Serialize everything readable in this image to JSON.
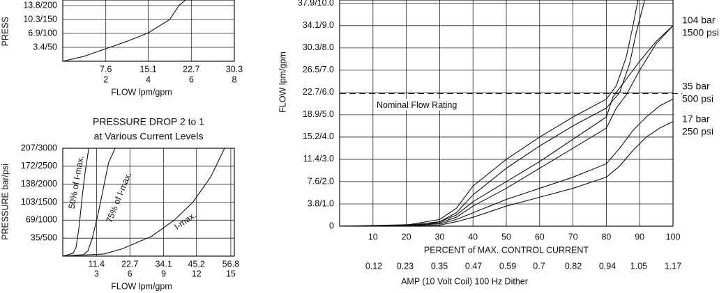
{
  "chart_data": [
    {
      "type": "line",
      "ylabel": "PRESS",
      "xlabel": "FLOW lpm/gpm",
      "xlim": [
        0,
        30.3
      ],
      "ylim": [
        0,
        220
      ],
      "xticks": [
        7.6,
        15.1,
        22.7,
        30.3
      ],
      "xticks2": [
        2,
        4,
        6,
        8
      ],
      "yticks": [
        {
          "value": 50,
          "label": "3.4/50"
        },
        {
          "value": 100,
          "label": "6.9/100"
        },
        {
          "value": 150,
          "label": "10.3/150"
        },
        {
          "value": 200,
          "label": "13.8/200"
        }
      ],
      "grid": true,
      "series": [
        {
          "color": "#111111",
          "x": [
            0,
            3.8,
            7.6,
            11.4,
            15.1,
            18.9,
            20.5,
            21.7
          ],
          "values": [
            0,
            18,
            45,
            72,
            102,
            150,
            200,
            220
          ]
        }
      ]
    },
    {
      "type": "line",
      "title": "PRESSURE DROP 2 to 1",
      "subtitle": "at Various Current Levels",
      "ylabel": "PRESSURE bar/psi",
      "xlabel": "FLOW lpm/gpm",
      "xlim": [
        0,
        58
      ],
      "ylim": [
        0,
        3000
      ],
      "xticks": [
        11.4,
        22.7,
        34.1,
        45.2,
        56.8
      ],
      "xticks2": [
        3,
        6,
        9,
        12,
        15
      ],
      "yticks": [
        {
          "value": 500,
          "label": "35/500"
        },
        {
          "value": 1000,
          "label": "69/1000"
        },
        {
          "value": 1500,
          "label": "103/1500"
        },
        {
          "value": 2000,
          "label": "138/2000"
        },
        {
          "value": 2500,
          "label": "172/2500"
        },
        {
          "value": 3000,
          "label": "207/3000"
        }
      ],
      "grid": true,
      "annotations": [
        "50% of I-max.",
        "75% of I-max.",
        "I-max."
      ],
      "series": [
        {
          "color": "#111111",
          "x": [
            0,
            3.5,
            4.5,
            5.5,
            6.5,
            7.5,
            8.8
          ],
          "values": [
            0,
            80,
            250,
            800,
            1600,
            2300,
            3000
          ]
        },
        {
          "color": "#111111",
          "x": [
            0,
            7,
            8.5,
            10,
            12,
            14,
            15.5,
            17.7
          ],
          "values": [
            0,
            40,
            150,
            500,
            1200,
            2000,
            2600,
            3000
          ]
        },
        {
          "color": "#111111",
          "x": [
            0,
            14,
            20,
            30,
            37.7,
            44,
            50,
            54.7
          ],
          "values": [
            0,
            60,
            200,
            550,
            1000,
            1500,
            2200,
            3000
          ]
        }
      ]
    },
    {
      "type": "line",
      "ylabel": "FLOW lpm/gpm",
      "xlabel": "PERCENT of MAX. CONTROL CURRENT",
      "x2label": "AMP (10 Volt Coil) 100 Hz Dither",
      "xlim": [
        0,
        100
      ],
      "ylim": [
        0,
        10.15
      ],
      "x2lim": [
        0,
        1.17
      ],
      "xticks": [
        10,
        20,
        30,
        40,
        50,
        60,
        70,
        80,
        90,
        100
      ],
      "x2ticks": [
        0.12,
        0.23,
        0.35,
        0.47,
        0.59,
        0.7,
        0.82,
        0.94,
        1.05,
        1.17
      ],
      "yticks": [
        0,
        {
          "value": 1.0,
          "label": "3.8/1.0"
        },
        {
          "value": 2.0,
          "label": "7.6/2.0"
        },
        {
          "value": 3.0,
          "label": "11.4/3.0"
        },
        {
          "value": 4.0,
          "label": "15.2/4.0"
        },
        {
          "value": 5.0,
          "label": "18.9/5.0"
        },
        {
          "value": 6.0,
          "label": "22.7/6.0"
        },
        {
          "value": 7.0,
          "label": "26.5/7.0"
        },
        {
          "value": 8.0,
          "label": "30.3/8.0"
        },
        {
          "value": 9.0,
          "label": "34.1/9.0"
        },
        {
          "value": 10.0,
          "label": "37.9/10.0"
        }
      ],
      "grid": true,
      "reference_line": {
        "value": 5.95,
        "label": "Nominal Flow Rating"
      },
      "side_labels": [
        [
          "104 bar",
          "1500 psi"
        ],
        [
          "35 bar",
          "500 psi"
        ],
        [
          "17 bar",
          "250 psi"
        ]
      ],
      "series": [
        {
          "color": "#111111",
          "x": [
            0,
            20,
            30,
            35,
            40,
            50,
            60,
            70,
            80,
            83,
            86,
            88,
            89.5
          ],
          "values": [
            0,
            0.05,
            0.3,
            0.8,
            1.8,
            3.0,
            4.0,
            4.9,
            5.7,
            6.3,
            7.6,
            9.0,
            10.15
          ]
        },
        {
          "color": "#111111",
          "x": [
            0,
            20,
            30,
            35,
            40,
            50,
            60,
            70,
            80,
            84,
            87,
            89,
            91.5
          ],
          "values": [
            0,
            0.03,
            0.2,
            0.6,
            1.4,
            2.6,
            3.6,
            4.5,
            5.3,
            6.0,
            7.3,
            8.7,
            10.15
          ]
        },
        {
          "color": "#111111",
          "x": [
            0,
            25,
            30,
            35,
            40,
            50,
            60,
            70,
            80,
            82,
            85,
            90,
            95,
            100
          ],
          "values": [
            0,
            0.05,
            0.2,
            0.5,
            1.1,
            2.0,
            2.9,
            3.9,
            4.9,
            5.8,
            6.4,
            7.4,
            8.3,
            9.0
          ]
        },
        {
          "color": "#111111",
          "x": [
            0,
            25,
            30,
            35,
            40,
            50,
            60,
            70,
            80,
            83,
            86,
            90,
            95,
            100
          ],
          "values": [
            0,
            0.03,
            0.15,
            0.4,
            0.9,
            1.7,
            2.6,
            3.5,
            4.4,
            5.3,
            5.9,
            7.0,
            8.2,
            9.0
          ]
        },
        {
          "color": "#111111",
          "x": [
            0,
            30,
            35,
            40,
            50,
            60,
            70,
            80,
            84,
            88,
            92,
            96,
            100
          ],
          "values": [
            0,
            0.1,
            0.3,
            0.6,
            1.2,
            1.7,
            2.2,
            2.8,
            3.5,
            4.3,
            4.9,
            5.4,
            5.7
          ]
        },
        {
          "color": "#111111",
          "x": [
            0,
            30,
            35,
            40,
            50,
            60,
            70,
            80,
            84,
            88,
            92,
            96,
            100
          ],
          "values": [
            0,
            0.05,
            0.2,
            0.4,
            0.9,
            1.3,
            1.7,
            2.2,
            2.7,
            3.4,
            4.0,
            4.4,
            4.7
          ]
        }
      ]
    }
  ]
}
